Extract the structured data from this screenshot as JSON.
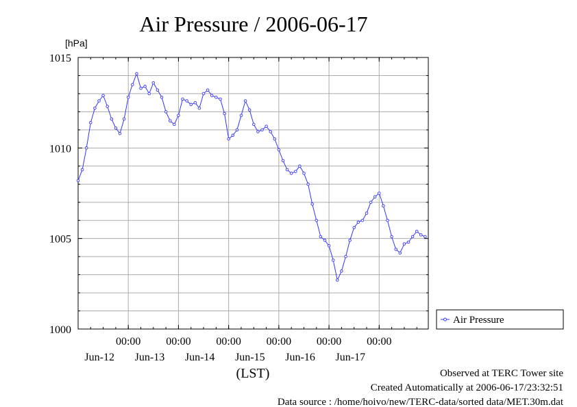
{
  "chart_data": {
    "type": "line",
    "title": "Air Pressure / 2006-06-17",
    "y_unit": "[hPa]",
    "xlabel": "(LST)",
    "ylim": [
      1000,
      1015
    ],
    "yticks": [
      "1000",
      "1005",
      "1010",
      "1015"
    ],
    "xlim": [
      "2006-06-11 00:00",
      "2006-06-17 23:30"
    ],
    "xticks": [
      {
        "time": "2006-06-12 00:00",
        "hour": "00:00",
        "date": "Jun-12"
      },
      {
        "time": "2006-06-13 00:00",
        "hour": "00:00",
        "date": "Jun-13"
      },
      {
        "time": "2006-06-14 00:00",
        "hour": "00:00",
        "date": "Jun-14"
      },
      {
        "time": "2006-06-15 00:00",
        "hour": "00:00",
        "date": "Jun-15"
      },
      {
        "time": "2006-06-16 00:00",
        "hour": "00:00",
        "date": "Jun-16"
      },
      {
        "time": "2006-06-17 00:00",
        "hour": "00:00",
        "date": "Jun-17"
      }
    ],
    "grid": true,
    "legend": "right",
    "series": [
      {
        "name": "Air Pressure",
        "color": "#3333ff",
        "points": [
          [
            "2006-06-11 00:00",
            1008.2
          ],
          [
            "2006-06-11 02:00",
            1008.8
          ],
          [
            "2006-06-11 04:00",
            1010.0
          ],
          [
            "2006-06-11 06:00",
            1011.4
          ],
          [
            "2006-06-11 08:00",
            1012.2
          ],
          [
            "2006-06-11 10:00",
            1012.6
          ],
          [
            "2006-06-11 12:00",
            1012.9
          ],
          [
            "2006-06-11 14:00",
            1012.3
          ],
          [
            "2006-06-11 16:00",
            1011.6
          ],
          [
            "2006-06-11 18:00",
            1011.1
          ],
          [
            "2006-06-11 20:00",
            1010.8
          ],
          [
            "2006-06-11 22:00",
            1011.6
          ],
          [
            "2006-06-12 00:00",
            1012.8
          ],
          [
            "2006-06-12 02:00",
            1013.5
          ],
          [
            "2006-06-12 04:00",
            1014.1
          ],
          [
            "2006-06-12 06:00",
            1013.3
          ],
          [
            "2006-06-12 08:00",
            1013.4
          ],
          [
            "2006-06-12 10:00",
            1013.0
          ],
          [
            "2006-06-12 12:00",
            1013.6
          ],
          [
            "2006-06-12 14:00",
            1013.2
          ],
          [
            "2006-06-12 16:00",
            1012.8
          ],
          [
            "2006-06-12 18:00",
            1012.0
          ],
          [
            "2006-06-12 20:00",
            1011.5
          ],
          [
            "2006-06-12 22:00",
            1011.3
          ],
          [
            "2006-06-13 00:00",
            1011.8
          ],
          [
            "2006-06-13 02:00",
            1012.7
          ],
          [
            "2006-06-13 04:00",
            1012.6
          ],
          [
            "2006-06-13 06:00",
            1012.4
          ],
          [
            "2006-06-13 08:00",
            1012.5
          ],
          [
            "2006-06-13 10:00",
            1012.2
          ],
          [
            "2006-06-13 12:00",
            1013.0
          ],
          [
            "2006-06-13 14:00",
            1013.2
          ],
          [
            "2006-06-13 16:00",
            1012.9
          ],
          [
            "2006-06-13 18:00",
            1012.8
          ],
          [
            "2006-06-13 20:00",
            1012.7
          ],
          [
            "2006-06-13 22:00",
            1011.9
          ],
          [
            "2006-06-14 00:00",
            1010.5
          ],
          [
            "2006-06-14 02:00",
            1010.7
          ],
          [
            "2006-06-14 04:00",
            1011.0
          ],
          [
            "2006-06-14 06:00",
            1011.8
          ],
          [
            "2006-06-14 08:00",
            1012.6
          ],
          [
            "2006-06-14 10:00",
            1012.1
          ],
          [
            "2006-06-14 12:00",
            1011.3
          ],
          [
            "2006-06-14 14:00",
            1010.9
          ],
          [
            "2006-06-14 16:00",
            1011.0
          ],
          [
            "2006-06-14 18:00",
            1011.2
          ],
          [
            "2006-06-14 20:00",
            1010.9
          ],
          [
            "2006-06-14 22:00",
            1010.5
          ],
          [
            "2006-06-15 00:00",
            1009.9
          ],
          [
            "2006-06-15 02:00",
            1009.3
          ],
          [
            "2006-06-15 04:00",
            1008.8
          ],
          [
            "2006-06-15 06:00",
            1008.6
          ],
          [
            "2006-06-15 08:00",
            1008.7
          ],
          [
            "2006-06-15 10:00",
            1009.0
          ],
          [
            "2006-06-15 12:00",
            1008.6
          ],
          [
            "2006-06-15 14:00",
            1008.0
          ],
          [
            "2006-06-15 16:00",
            1006.9
          ],
          [
            "2006-06-15 18:00",
            1006.0
          ],
          [
            "2006-06-15 20:00",
            1005.1
          ],
          [
            "2006-06-15 22:00",
            1004.9
          ],
          [
            "2006-06-16 00:00",
            1004.6
          ],
          [
            "2006-06-16 02:00",
            1003.8
          ],
          [
            "2006-06-16 04:00",
            1002.7
          ],
          [
            "2006-06-16 06:00",
            1003.2
          ],
          [
            "2006-06-16 08:00",
            1004.0
          ],
          [
            "2006-06-16 10:00",
            1004.9
          ],
          [
            "2006-06-16 12:00",
            1005.6
          ],
          [
            "2006-06-16 14:00",
            1005.9
          ],
          [
            "2006-06-16 16:00",
            1006.0
          ],
          [
            "2006-06-16 18:00",
            1006.4
          ],
          [
            "2006-06-16 20:00",
            1007.0
          ],
          [
            "2006-06-16 22:00",
            1007.3
          ],
          [
            "2006-06-17 00:00",
            1007.5
          ],
          [
            "2006-06-17 02:00",
            1006.8
          ],
          [
            "2006-06-17 04:00",
            1006.0
          ],
          [
            "2006-06-17 06:00",
            1005.1
          ],
          [
            "2006-06-17 08:00",
            1004.4
          ],
          [
            "2006-06-17 10:00",
            1004.2
          ],
          [
            "2006-06-17 12:00",
            1004.7
          ],
          [
            "2006-06-17 14:00",
            1004.8
          ],
          [
            "2006-06-17 16:00",
            1005.1
          ],
          [
            "2006-06-17 18:00",
            1005.4
          ],
          [
            "2006-06-17 20:00",
            1005.2
          ],
          [
            "2006-06-17 22:00",
            1005.1
          ]
        ]
      }
    ]
  },
  "footer": {
    "site": "Observed at TERC Tower site",
    "created": "Created Automatically at 2006-06-17/23:32:51",
    "source": "Data source : /home/hoivo/new/TERC-data/sorted  data/MET.30m.dat"
  }
}
